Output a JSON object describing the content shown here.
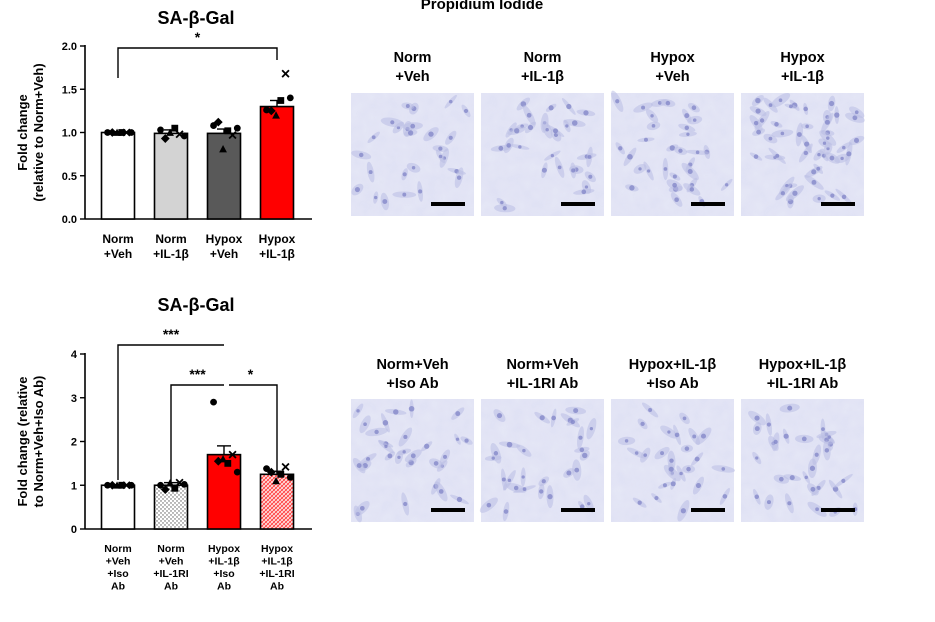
{
  "header": {
    "propidium_label": "Propidium Iodide"
  },
  "panel_top": {
    "labels": [
      [
        "Norm",
        "+Veh"
      ],
      [
        "Norm",
        "+IL-1β"
      ],
      [
        "Hypox",
        "+Veh"
      ],
      [
        "Hypox",
        "+IL-1β"
      ]
    ]
  },
  "panel_bottom": {
    "labels": [
      [
        "Norm+Veh",
        "+Iso Ab"
      ],
      [
        "Norm+Veh",
        "+IL-1RI Ab"
      ],
      [
        "Hypox+IL-1β",
        "+Iso Ab"
      ],
      [
        "Hypox+IL-1β",
        "+IL-1RI Ab"
      ]
    ]
  },
  "chart_data": [
    {
      "type": "bar",
      "title": "SA-β-Gal",
      "ylabel": [
        "Fold change",
        "(relative to Norm+Veh)"
      ],
      "ylim": [
        0,
        2.0
      ],
      "yticks": [
        "0.0",
        "0.5",
        "1.0",
        "1.5",
        "2.0"
      ],
      "categories": [
        [
          "Norm",
          "+Veh"
        ],
        [
          "Norm",
          "+IL-1β"
        ],
        [
          "Hypox",
          "+Veh"
        ],
        [
          "Hypox",
          "+IL-1β"
        ]
      ],
      "values": [
        1.0,
        0.99,
        0.99,
        1.3
      ],
      "errors": [
        0.01,
        0.04,
        0.05,
        0.07
      ],
      "bar_colors": [
        "#ffffff",
        "#d3d3d3",
        "#595959",
        "#ff0000"
      ],
      "points": [
        [
          [
            1.0,
            "circle"
          ],
          [
            1.0,
            "diamond"
          ],
          [
            1.0,
            "triangle"
          ],
          [
            1.0,
            "square"
          ],
          [
            1.0,
            "x"
          ],
          [
            1.0,
            "circle"
          ]
        ],
        [
          [
            1.03,
            "circle"
          ],
          [
            0.93,
            "diamond"
          ],
          [
            1.0,
            "triangle"
          ],
          [
            1.05,
            "square"
          ],
          [
            0.98,
            "x"
          ],
          [
            0.96,
            "circle"
          ]
        ],
        [
          [
            1.08,
            "circle"
          ],
          [
            1.12,
            "diamond"
          ],
          [
            0.81,
            "triangle"
          ],
          [
            1.02,
            "square"
          ],
          [
            0.97,
            "x"
          ],
          [
            1.05,
            "circle"
          ]
        ],
        [
          [
            1.26,
            "circle"
          ],
          [
            1.25,
            "diamond"
          ],
          [
            1.2,
            "triangle"
          ],
          [
            1.37,
            "square"
          ],
          [
            1.68,
            "x"
          ],
          [
            1.4,
            "circle"
          ]
        ]
      ],
      "significance": [
        {
          "from": 0,
          "to": 3,
          "label": "*"
        }
      ]
    },
    {
      "type": "bar",
      "title": "SA-β-Gal",
      "ylabel": [
        "Fold change (relative",
        "to Norm+Veh+Iso Ab)"
      ],
      "ylim": [
        0,
        4
      ],
      "yticks": [
        "0",
        "1",
        "2",
        "3",
        "4"
      ],
      "categories": [
        [
          "Norm",
          "+Veh",
          "+Iso",
          "Ab"
        ],
        [
          "Norm",
          "+Veh",
          "+IL-1RI",
          "Ab"
        ],
        [
          "Hypox",
          "+IL-1β",
          "+Iso",
          "Ab"
        ],
        [
          "Hypox",
          "+IL-1β",
          "+IL-1RI",
          "Ab"
        ]
      ],
      "values": [
        1.0,
        1.0,
        1.7,
        1.25
      ],
      "errors": [
        0.01,
        0.06,
        0.2,
        0.07
      ],
      "bar_colors": [
        "#ffffff",
        "#f0f0f0",
        "#ff0000",
        "#ffd7d7"
      ],
      "points": [
        [
          [
            1.0,
            "circle"
          ],
          [
            1.0,
            "diamond"
          ],
          [
            1.0,
            "triangle"
          ],
          [
            1.0,
            "square"
          ],
          [
            1.0,
            "x"
          ],
          [
            1.0,
            "circle"
          ]
        ],
        [
          [
            1.0,
            "circle"
          ],
          [
            0.9,
            "diamond"
          ],
          [
            1.05,
            "triangle"
          ],
          [
            0.93,
            "square"
          ],
          [
            1.06,
            "x"
          ],
          [
            1.02,
            "circle"
          ]
        ],
        [
          [
            2.9,
            "circle"
          ],
          [
            1.55,
            "diamond"
          ],
          [
            1.6,
            "triangle"
          ],
          [
            1.5,
            "square"
          ],
          [
            1.7,
            "x"
          ],
          [
            1.3,
            "circle"
          ]
        ],
        [
          [
            1.38,
            "circle"
          ],
          [
            1.3,
            "diamond"
          ],
          [
            1.1,
            "triangle"
          ],
          [
            1.25,
            "square"
          ],
          [
            1.42,
            "x"
          ],
          [
            1.18,
            "circle"
          ]
        ]
      ],
      "significance": [
        {
          "from": 0,
          "to": 2,
          "label": "***"
        },
        {
          "from": 1,
          "to": 2,
          "label": "***"
        },
        {
          "from": 2,
          "to": 3,
          "label": "*"
        }
      ]
    }
  ]
}
